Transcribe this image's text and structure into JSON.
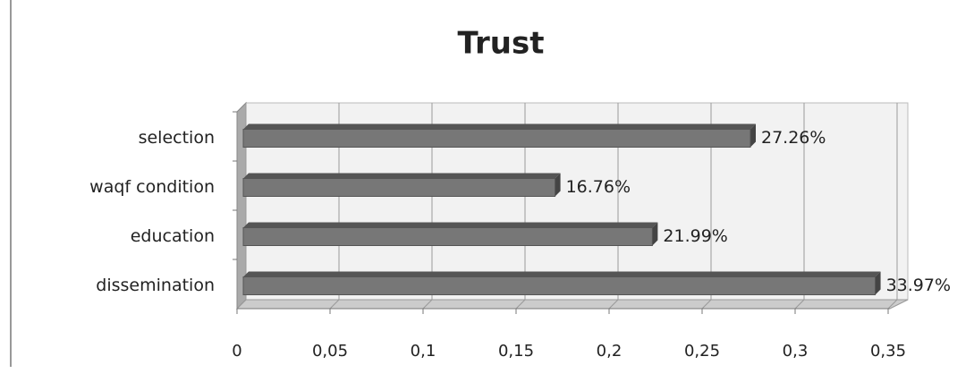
{
  "chart_data": {
    "type": "bar",
    "orientation": "horizontal",
    "title": "Trust",
    "categories": [
      "selection",
      "waqf condition",
      "education",
      "dissemination"
    ],
    "values": [
      0.2726,
      0.1676,
      0.2199,
      0.3397
    ],
    "value_labels": [
      "27.26%",
      "16.76%",
      "21.99%",
      "33.97%"
    ],
    "color": "#777777",
    "xlim": [
      0,
      0.35
    ],
    "xticks": [
      0,
      {
        "value": 0.05,
        "label": "0,05"
      },
      {
        "value": 0.1,
        "label": "0,1"
      },
      {
        "value": 0.15,
        "label": "0,15"
      },
      {
        "value": 0.2,
        "label": "0,2"
      },
      {
        "value": 0.25,
        "label": "0,25"
      },
      {
        "value": 0.3,
        "label": "0,3"
      },
      {
        "value": 0.35,
        "label": "0,35"
      }
    ],
    "grid": true
  }
}
